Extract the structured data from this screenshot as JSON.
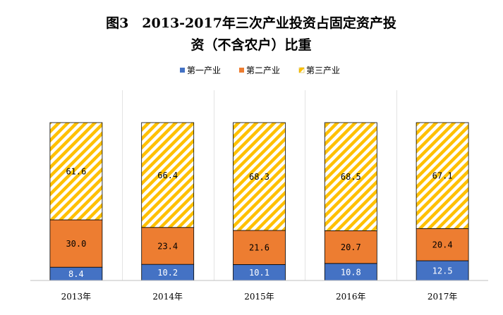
{
  "chart_data": {
    "type": "bar",
    "stacked": true,
    "title_lines": [
      "图3　2013-2017年三次产业投资占固定资产投",
      "资（不含农户）比重"
    ],
    "categories": [
      "2013年",
      "2014年",
      "2015年",
      "2016年",
      "2017年"
    ],
    "series": [
      {
        "name": "第一产业",
        "values": [
          8.4,
          10.2,
          10.1,
          10.8,
          12.5
        ],
        "color": "#4472C4",
        "fill": "solid"
      },
      {
        "name": "第二产业",
        "values": [
          30.0,
          23.4,
          21.6,
          20.7,
          20.4
        ],
        "color": "#ED7D31",
        "fill": "solid"
      },
      {
        "name": "第三产业",
        "values": [
          61.6,
          66.4,
          68.3,
          68.5,
          67.1
        ],
        "color": "#FFC000",
        "fill": "diagonal-stripes"
      }
    ],
    "value_labels": [
      [
        "8.4",
        "10.2",
        "10.1",
        "10.8",
        "12.5"
      ],
      [
        "30.0",
        "23.4",
        "21.6",
        "20.7",
        "20.4"
      ],
      [
        "61.6",
        "66.4",
        "68.3",
        "68.5",
        "67.1"
      ]
    ],
    "ylim": [
      0,
      100
    ],
    "gridlines": false,
    "category_separators": true,
    "legend_position": "top-center"
  }
}
